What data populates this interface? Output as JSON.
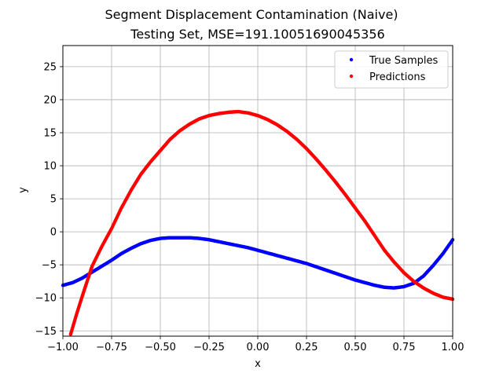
{
  "chart_data": {
    "type": "scatter",
    "suptitle": "Segment Displacement Contamination (Naive)",
    "title": "Testing Set, MSE=191.10051690045356",
    "xlabel": "x",
    "ylabel": "y",
    "xlim": [
      -1.0,
      1.0
    ],
    "ylim": [
      -15.8,
      28.2
    ],
    "xticks": [
      -1.0,
      -0.75,
      -0.5,
      -0.25,
      0.0,
      0.25,
      0.5,
      0.75,
      1.0
    ],
    "xtick_labels": [
      "−1.00",
      "−0.75",
      "−0.50",
      "−0.25",
      "0.00",
      "0.25",
      "0.50",
      "0.75",
      "1.00"
    ],
    "yticks": [
      -15,
      -10,
      -5,
      0,
      5,
      10,
      15,
      20,
      25
    ],
    "ytick_labels": [
      "−15",
      "−10",
      "−5",
      "0",
      "5",
      "10",
      "15",
      "20",
      "25"
    ],
    "grid": true,
    "legend_position": "top-right",
    "series": [
      {
        "name": "True Samples",
        "color": "#0000ff",
        "x": [
          -1.0,
          -0.95,
          -0.9,
          -0.85,
          -0.8,
          -0.75,
          -0.7,
          -0.65,
          -0.6,
          -0.55,
          -0.5,
          -0.45,
          -0.4,
          -0.35,
          -0.3,
          -0.25,
          -0.2,
          -0.15,
          -0.1,
          -0.05,
          0.0,
          0.05,
          0.1,
          0.15,
          0.2,
          0.25,
          0.3,
          0.35,
          0.4,
          0.45,
          0.5,
          0.55,
          0.6,
          0.65,
          0.7,
          0.75,
          0.8,
          0.85,
          0.9,
          0.95,
          1.0
        ],
        "y": [
          -8.1,
          -7.7,
          -7.0,
          -6.1,
          -5.2,
          -4.3,
          -3.3,
          -2.5,
          -1.8,
          -1.3,
          -1.0,
          -0.9,
          -0.9,
          -0.9,
          -1.0,
          -1.2,
          -1.5,
          -1.8,
          -2.1,
          -2.4,
          -2.8,
          -3.2,
          -3.6,
          -4.0,
          -4.4,
          -4.8,
          -5.3,
          -5.8,
          -6.3,
          -6.8,
          -7.3,
          -7.7,
          -8.1,
          -8.4,
          -8.5,
          -8.3,
          -7.8,
          -6.7,
          -5.1,
          -3.3,
          -1.2
        ]
      },
      {
        "name": "Predictions",
        "color": "#ff0000",
        "x": [
          -0.96,
          -0.93,
          -0.9,
          -0.87,
          -0.85,
          -0.8,
          -0.75,
          -0.7,
          -0.65,
          -0.6,
          -0.55,
          -0.5,
          -0.45,
          -0.4,
          -0.35,
          -0.3,
          -0.25,
          -0.2,
          -0.15,
          -0.1,
          -0.05,
          0.0,
          0.05,
          0.1,
          0.15,
          0.2,
          0.25,
          0.3,
          0.35,
          0.4,
          0.45,
          0.5,
          0.55,
          0.6,
          0.65,
          0.7,
          0.75,
          0.8,
          0.85,
          0.9,
          0.95,
          1.0
        ],
        "y": [
          -15.5,
          -12.5,
          -9.7,
          -7.0,
          -5.2,
          -2.2,
          0.5,
          3.6,
          6.3,
          8.7,
          10.6,
          12.3,
          14.0,
          15.3,
          16.3,
          17.1,
          17.6,
          17.9,
          18.1,
          18.2,
          18.0,
          17.6,
          17.0,
          16.2,
          15.2,
          14.0,
          12.6,
          11.0,
          9.3,
          7.5,
          5.6,
          3.6,
          1.6,
          -0.6,
          -2.8,
          -4.6,
          -6.2,
          -7.5,
          -8.5,
          -9.3,
          -9.9,
          -10.2
        ]
      }
    ]
  }
}
